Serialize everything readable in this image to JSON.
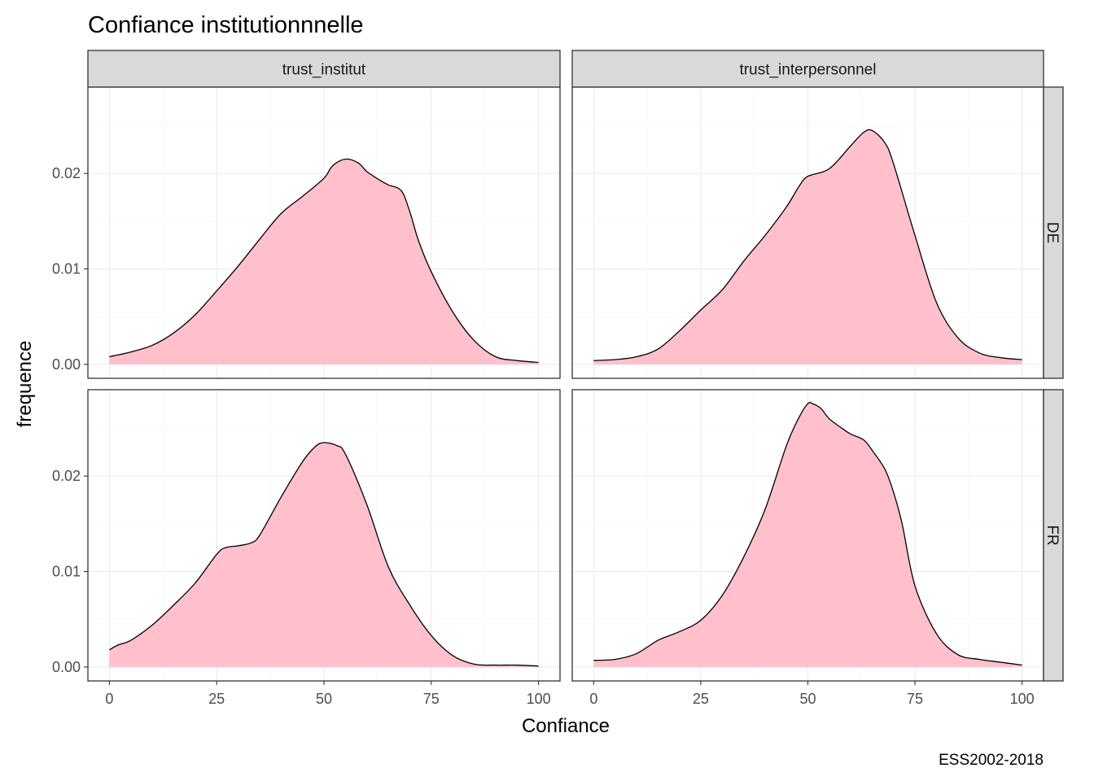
{
  "chart_data": {
    "type": "area",
    "title": "Confiance institutionnnelle",
    "xlabel": "Confiance",
    "ylabel": "frequence",
    "caption": "ESS2002-2018",
    "xlim": [
      0,
      100
    ],
    "ylim": [
      0,
      0.025
    ],
    "x_ticks": [
      0,
      25,
      50,
      75,
      100
    ],
    "x_tick_labels": [
      "0",
      "25",
      "50",
      "75",
      "100"
    ],
    "y_ticks": [
      0,
      0.01,
      0.02
    ],
    "y_tick_labels": [
      "0.00",
      "0.01",
      "0.02"
    ],
    "grid": true,
    "fill_color": "#ffc0cb",
    "line_color": "#000000",
    "facet_cols": [
      "trust_institut",
      "trust_interpersonnel"
    ],
    "facet_rows": [
      "DE",
      "FR"
    ],
    "panels": [
      {
        "col": "trust_institut",
        "row": "DE",
        "x": [
          0,
          5,
          10,
          15,
          20,
          25,
          30,
          35,
          40,
          45,
          50,
          52,
          55,
          58,
          60,
          63,
          65,
          68,
          70,
          72,
          75,
          80,
          85,
          90,
          95,
          100
        ],
        "y": [
          0.0008,
          0.0013,
          0.002,
          0.0033,
          0.0052,
          0.0077,
          0.0103,
          0.0131,
          0.0158,
          0.0176,
          0.0195,
          0.0208,
          0.0215,
          0.0211,
          0.0202,
          0.0193,
          0.0188,
          0.0182,
          0.016,
          0.013,
          0.0097,
          0.0055,
          0.0025,
          0.0008,
          0.0004,
          0.0002
        ]
      },
      {
        "col": "trust_interpersonnel",
        "row": "DE",
        "x": [
          0,
          5,
          10,
          15,
          20,
          25,
          30,
          35,
          40,
          45,
          48,
          50,
          55,
          60,
          63,
          65,
          68,
          70,
          75,
          80,
          85,
          90,
          95,
          100
        ],
        "y": [
          0.0004,
          0.0005,
          0.0008,
          0.0016,
          0.0035,
          0.0057,
          0.0078,
          0.0108,
          0.0135,
          0.0165,
          0.0187,
          0.0197,
          0.0205,
          0.0229,
          0.0243,
          0.0245,
          0.0232,
          0.021,
          0.0135,
          0.0065,
          0.0028,
          0.0012,
          0.0007,
          0.0005
        ]
      },
      {
        "col": "trust_institut",
        "row": "FR",
        "x": [
          0,
          2,
          5,
          10,
          15,
          20,
          25,
          27,
          30,
          33,
          35,
          40,
          45,
          48,
          50,
          53,
          55,
          60,
          65,
          70,
          75,
          80,
          85,
          90,
          95,
          100
        ],
        "y": [
          0.0018,
          0.0023,
          0.0028,
          0.0044,
          0.0065,
          0.0088,
          0.0118,
          0.0125,
          0.0127,
          0.013,
          0.0138,
          0.0178,
          0.0215,
          0.0231,
          0.0235,
          0.0232,
          0.0223,
          0.017,
          0.0105,
          0.0065,
          0.0033,
          0.0012,
          0.0003,
          0.0002,
          0.0002,
          0.0001
        ]
      },
      {
        "col": "trust_interpersonnel",
        "row": "FR",
        "x": [
          0,
          5,
          10,
          15,
          20,
          25,
          30,
          35,
          40,
          45,
          48,
          50,
          51,
          53,
          55,
          58,
          60,
          63,
          65,
          68,
          70,
          72,
          75,
          80,
          85,
          90,
          95,
          100
        ],
        "y": [
          0.0007,
          0.0008,
          0.0014,
          0.0028,
          0.0037,
          0.0049,
          0.0075,
          0.0115,
          0.0165,
          0.0232,
          0.0262,
          0.0276,
          0.0276,
          0.0271,
          0.026,
          0.025,
          0.0244,
          0.0238,
          0.0227,
          0.0207,
          0.0183,
          0.015,
          0.0085,
          0.0035,
          0.0013,
          0.0008,
          0.0005,
          0.0002
        ]
      }
    ]
  }
}
